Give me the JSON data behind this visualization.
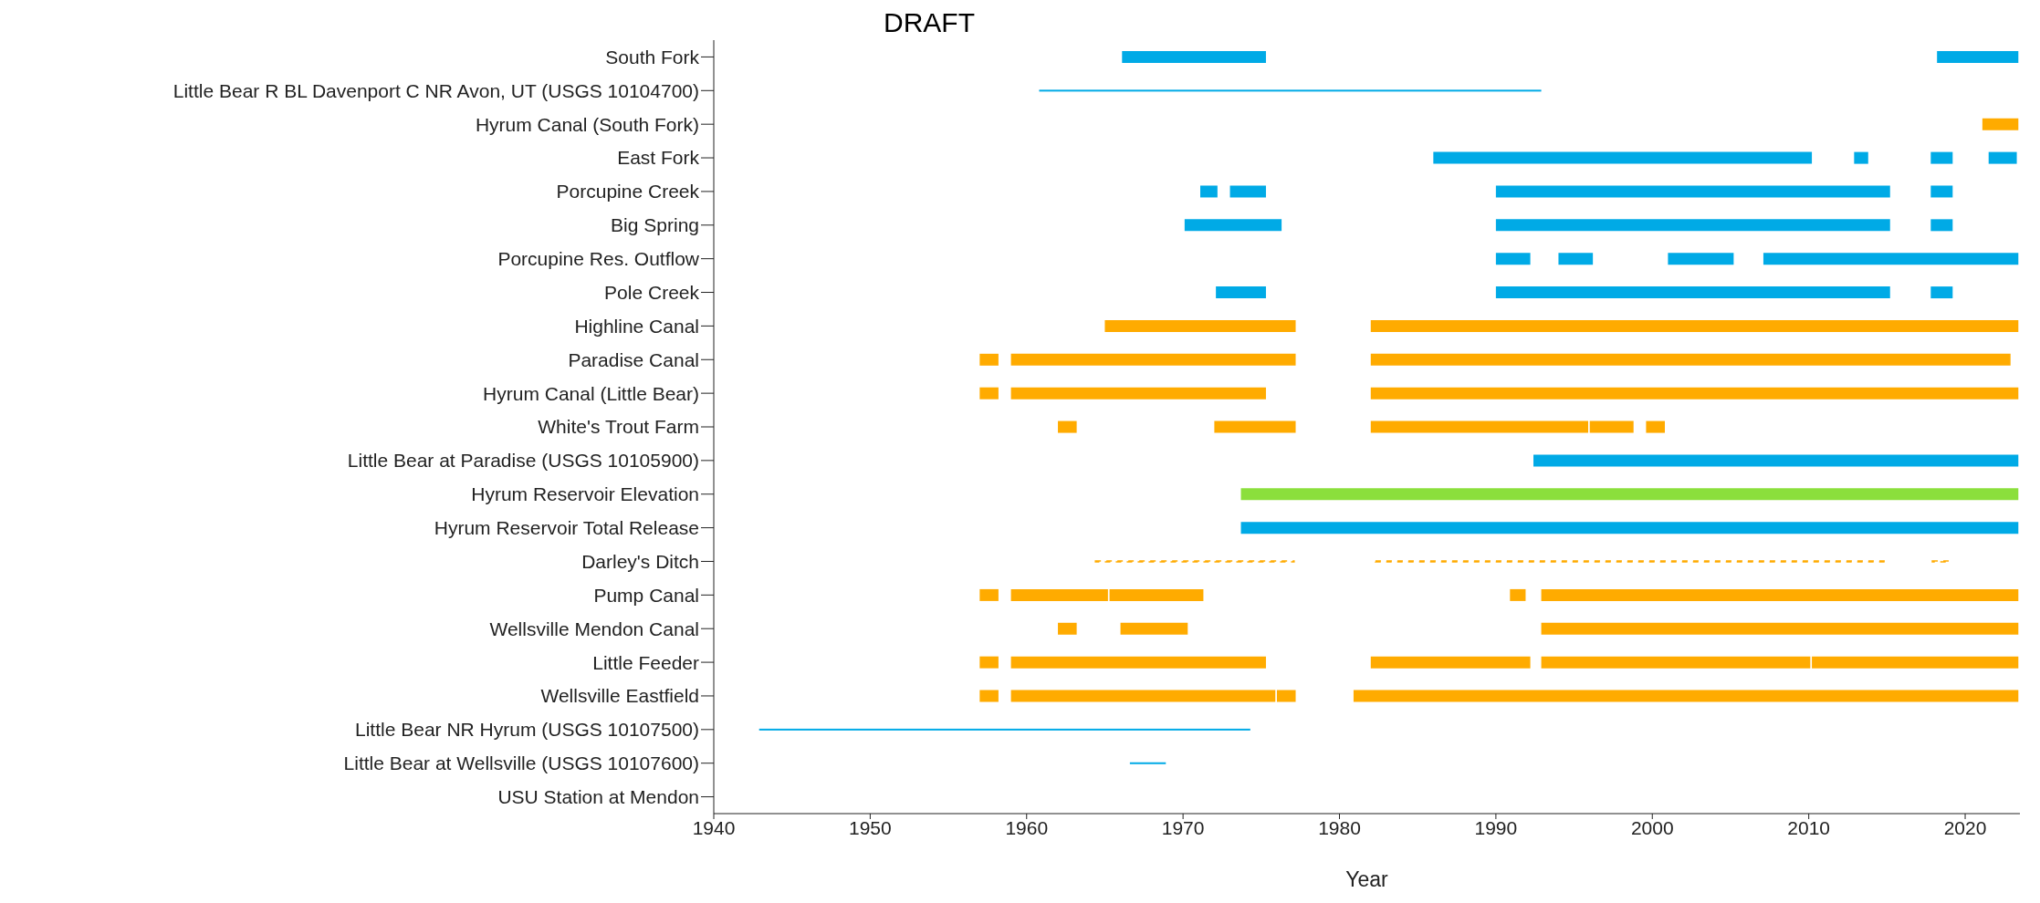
{
  "chart_data": {
    "type": "bar",
    "orientation": "horizontal",
    "xlabel": "Year",
    "annotations": [
      "DRAFT"
    ],
    "categories": [
      "South Fork",
      "Little Bear R BL Davenport C NR Avon, UT (USGS 10104700)",
      "Hyrum Canal (South Fork)",
      "East Fork",
      "Porcupine Creek",
      "Big Spring",
      "Porcupine Res. Outflow",
      "Pole Creek",
      "Highline Canal",
      "Paradise Canal",
      "Hyrum Canal (Little Bear)",
      "White's Trout Farm",
      "Little Bear at Paradise (USGS 10105900)",
      "Hyrum Reservoir Elevation",
      "Hyrum Reservoir Total Release",
      "Darley's Ditch",
      "Pump Canal",
      "Wellsville Mendon Canal",
      "Little Feeder",
      "Wellsville Eastfield",
      "Little Bear NR Hyrum (USGS 10107500)",
      "Little Bear at Wellsville (USGS 10107600)",
      "USU Station at Mendon"
    ],
    "xlim": [
      1940,
      2023.5
    ],
    "xticks": [
      1940,
      1950,
      1960,
      1970,
      1980,
      1990,
      2000,
      2010,
      2020
    ],
    "series": [
      {
        "base": [
          1966.1,
          null,
          2021.1,
          1986.0,
          1971.1,
          1970.1,
          1990.0,
          1972.1,
          1965.0,
          1957.0,
          1957.0,
          1962.0,
          1992.4,
          1973.7,
          1973.7,
          null,
          1957.0,
          1962.0,
          1957.0,
          1957.0,
          null,
          null,
          null
        ],
        "values": [
          9.2,
          null,
          2.3,
          24.2,
          1.1,
          6.2,
          2.2,
          3.2,
          12.2,
          1.2,
          1.2,
          1.2,
          31.0,
          49.7,
          49.7,
          null,
          1.2,
          1.2,
          1.2,
          1.2,
          null,
          null,
          null
        ],
        "colors": [
          "#00aae6",
          null,
          "#ffab00",
          "#00aae6",
          "#00aae6",
          "#00aae6",
          "#00aae6",
          "#00aae6",
          "#ffab00",
          "#ffab00",
          "#ffab00",
          "#ffab00",
          "#00aae6",
          "#8bdf3c",
          "#00aae6",
          null,
          "#ffab00",
          "#ffab00",
          "#ffab00",
          "#ffab00",
          null,
          null,
          null
        ]
      },
      {
        "base": [
          2018.2,
          null,
          null,
          2012.9,
          1973.0,
          1990.0,
          1994.0,
          1990.0,
          1982.0,
          1959.0,
          1959.0,
          1972.0,
          null,
          null,
          null,
          null,
          1959.0,
          1966.0,
          1959.0,
          1959.0,
          null,
          null,
          null
        ],
        "values": [
          5.2,
          null,
          null,
          0.9,
          2.3,
          25.2,
          2.2,
          25.2,
          41.4,
          18.2,
          16.3,
          5.2,
          null,
          null,
          null,
          null,
          6.2,
          4.3,
          16.3,
          16.9,
          null,
          null,
          null
        ],
        "colors": [
          "#00aae6",
          null,
          null,
          "#00aae6",
          "#00aae6",
          "#00aae6",
          "#00aae6",
          "#00aae6",
          "#ffab00",
          "#ffab00",
          "#ffab00",
          "#ffab00",
          null,
          null,
          null,
          null,
          "#ffab00",
          "#ffab00",
          "#ffab00",
          "#ffab00",
          null,
          null,
          null
        ]
      },
      {
        "base": [
          null,
          null,
          null,
          2017.8,
          1990.0,
          2017.8,
          2001.0,
          2017.8,
          null,
          1982.0,
          1982.0,
          1982.0,
          null,
          null,
          null,
          null,
          1965.3,
          1992.9,
          1982.0,
          1976.0,
          null,
          null,
          null
        ],
        "values": [
          null,
          null,
          null,
          1.4,
          25.2,
          1.4,
          4.2,
          1.4,
          null,
          40.9,
          41.4,
          13.9,
          null,
          null,
          null,
          null,
          6.0,
          30.5,
          10.2,
          1.2,
          null,
          null,
          null
        ],
        "colors": [
          null,
          null,
          null,
          "#00aae6",
          "#00aae6",
          "#00aae6",
          "#00aae6",
          "#00aae6",
          null,
          "#ffab00",
          "#ffab00",
          "#ffab00",
          null,
          null,
          null,
          null,
          "#ffab00",
          "#ffab00",
          "#ffab00",
          "#ffab00",
          null,
          null,
          null
        ]
      },
      {
        "base": [
          null,
          null,
          null,
          2021.5,
          2017.8,
          null,
          2007.1,
          null,
          null,
          null,
          null,
          1996.0,
          null,
          null,
          null,
          null,
          1990.9,
          null,
          1992.9,
          1980.9,
          null,
          null,
          null
        ],
        "values": [
          null,
          null,
          null,
          1.8,
          1.4,
          null,
          16.3,
          null,
          null,
          null,
          null,
          2.8,
          null,
          null,
          null,
          null,
          1.0,
          null,
          17.2,
          42.5,
          null,
          null,
          null
        ],
        "colors": [
          null,
          null,
          null,
          "#00aae6",
          "#00aae6",
          null,
          "#00aae6",
          null,
          null,
          null,
          null,
          "#ffab00",
          null,
          null,
          null,
          null,
          "#ffab00",
          null,
          "#ffab00",
          "#ffab00",
          null,
          null,
          null
        ]
      },
      {
        "base": [
          null,
          null,
          null,
          null,
          null,
          null,
          null,
          null,
          null,
          null,
          null,
          1999.6,
          null,
          null,
          null,
          null,
          1992.9,
          null,
          2010.2,
          null,
          null,
          null,
          null
        ],
        "values": [
          null,
          null,
          null,
          null,
          null,
          null,
          null,
          null,
          null,
          null,
          null,
          1.2,
          null,
          null,
          null,
          null,
          30.5,
          null,
          13.2,
          null,
          null,
          null,
          null
        ],
        "colors": [
          null,
          null,
          null,
          null,
          null,
          null,
          null,
          null,
          null,
          null,
          null,
          "#ffab00",
          null,
          null,
          null,
          null,
          "#ffab00",
          null,
          "#ffab00",
          null,
          null,
          null,
          null
        ]
      },
      {
        "line_style": "solid",
        "color": "#00aae6",
        "base": [
          null,
          1960.8,
          null,
          null,
          null,
          null,
          null,
          null,
          null,
          null,
          null,
          null,
          null,
          null,
          null,
          null,
          null,
          null,
          null,
          null,
          1942.9,
          1966.6,
          null
        ],
        "values": [
          null,
          32.1,
          null,
          null,
          null,
          null,
          null,
          null,
          null,
          null,
          null,
          null,
          null,
          null,
          null,
          null,
          null,
          null,
          null,
          null,
          31.4,
          2.3,
          null
        ]
      },
      {
        "line_style": "dashed",
        "color": "#ffab00",
        "base": [
          null,
          null,
          null,
          null,
          null,
          null,
          null,
          null,
          null,
          null,
          null,
          null,
          null,
          null,
          null,
          1964.4,
          null,
          null,
          null,
          null,
          null,
          null,
          null
        ],
        "values": [
          null,
          null,
          null,
          null,
          null,
          null,
          null,
          null,
          null,
          null,
          null,
          null,
          null,
          null,
          null,
          12.7,
          null,
          null,
          null,
          null,
          null,
          null,
          null
        ]
      },
      {
        "line_style": "dashed",
        "color": "#ffab00",
        "base": [
          null,
          null,
          null,
          null,
          null,
          null,
          null,
          null,
          null,
          null,
          null,
          null,
          null,
          null,
          null,
          1982.3,
          null,
          null,
          null,
          null,
          null,
          null,
          null
        ],
        "values": [
          null,
          null,
          null,
          null,
          null,
          null,
          null,
          null,
          null,
          null,
          null,
          null,
          null,
          null,
          null,
          32.7,
          null,
          null,
          null,
          null,
          null,
          null,
          null
        ]
      },
      {
        "line_style": "dashed",
        "color": "#ffab00",
        "base": [
          null,
          null,
          null,
          null,
          null,
          null,
          null,
          null,
          null,
          null,
          null,
          null,
          null,
          null,
          null,
          2017.9,
          null,
          null,
          null,
          null,
          null,
          null,
          null
        ],
        "values": [
          null,
          null,
          null,
          null,
          null,
          null,
          null,
          null,
          null,
          null,
          null,
          null,
          null,
          null,
          null,
          1.1,
          null,
          null,
          null,
          null,
          null,
          null,
          null
        ]
      }
    ]
  }
}
